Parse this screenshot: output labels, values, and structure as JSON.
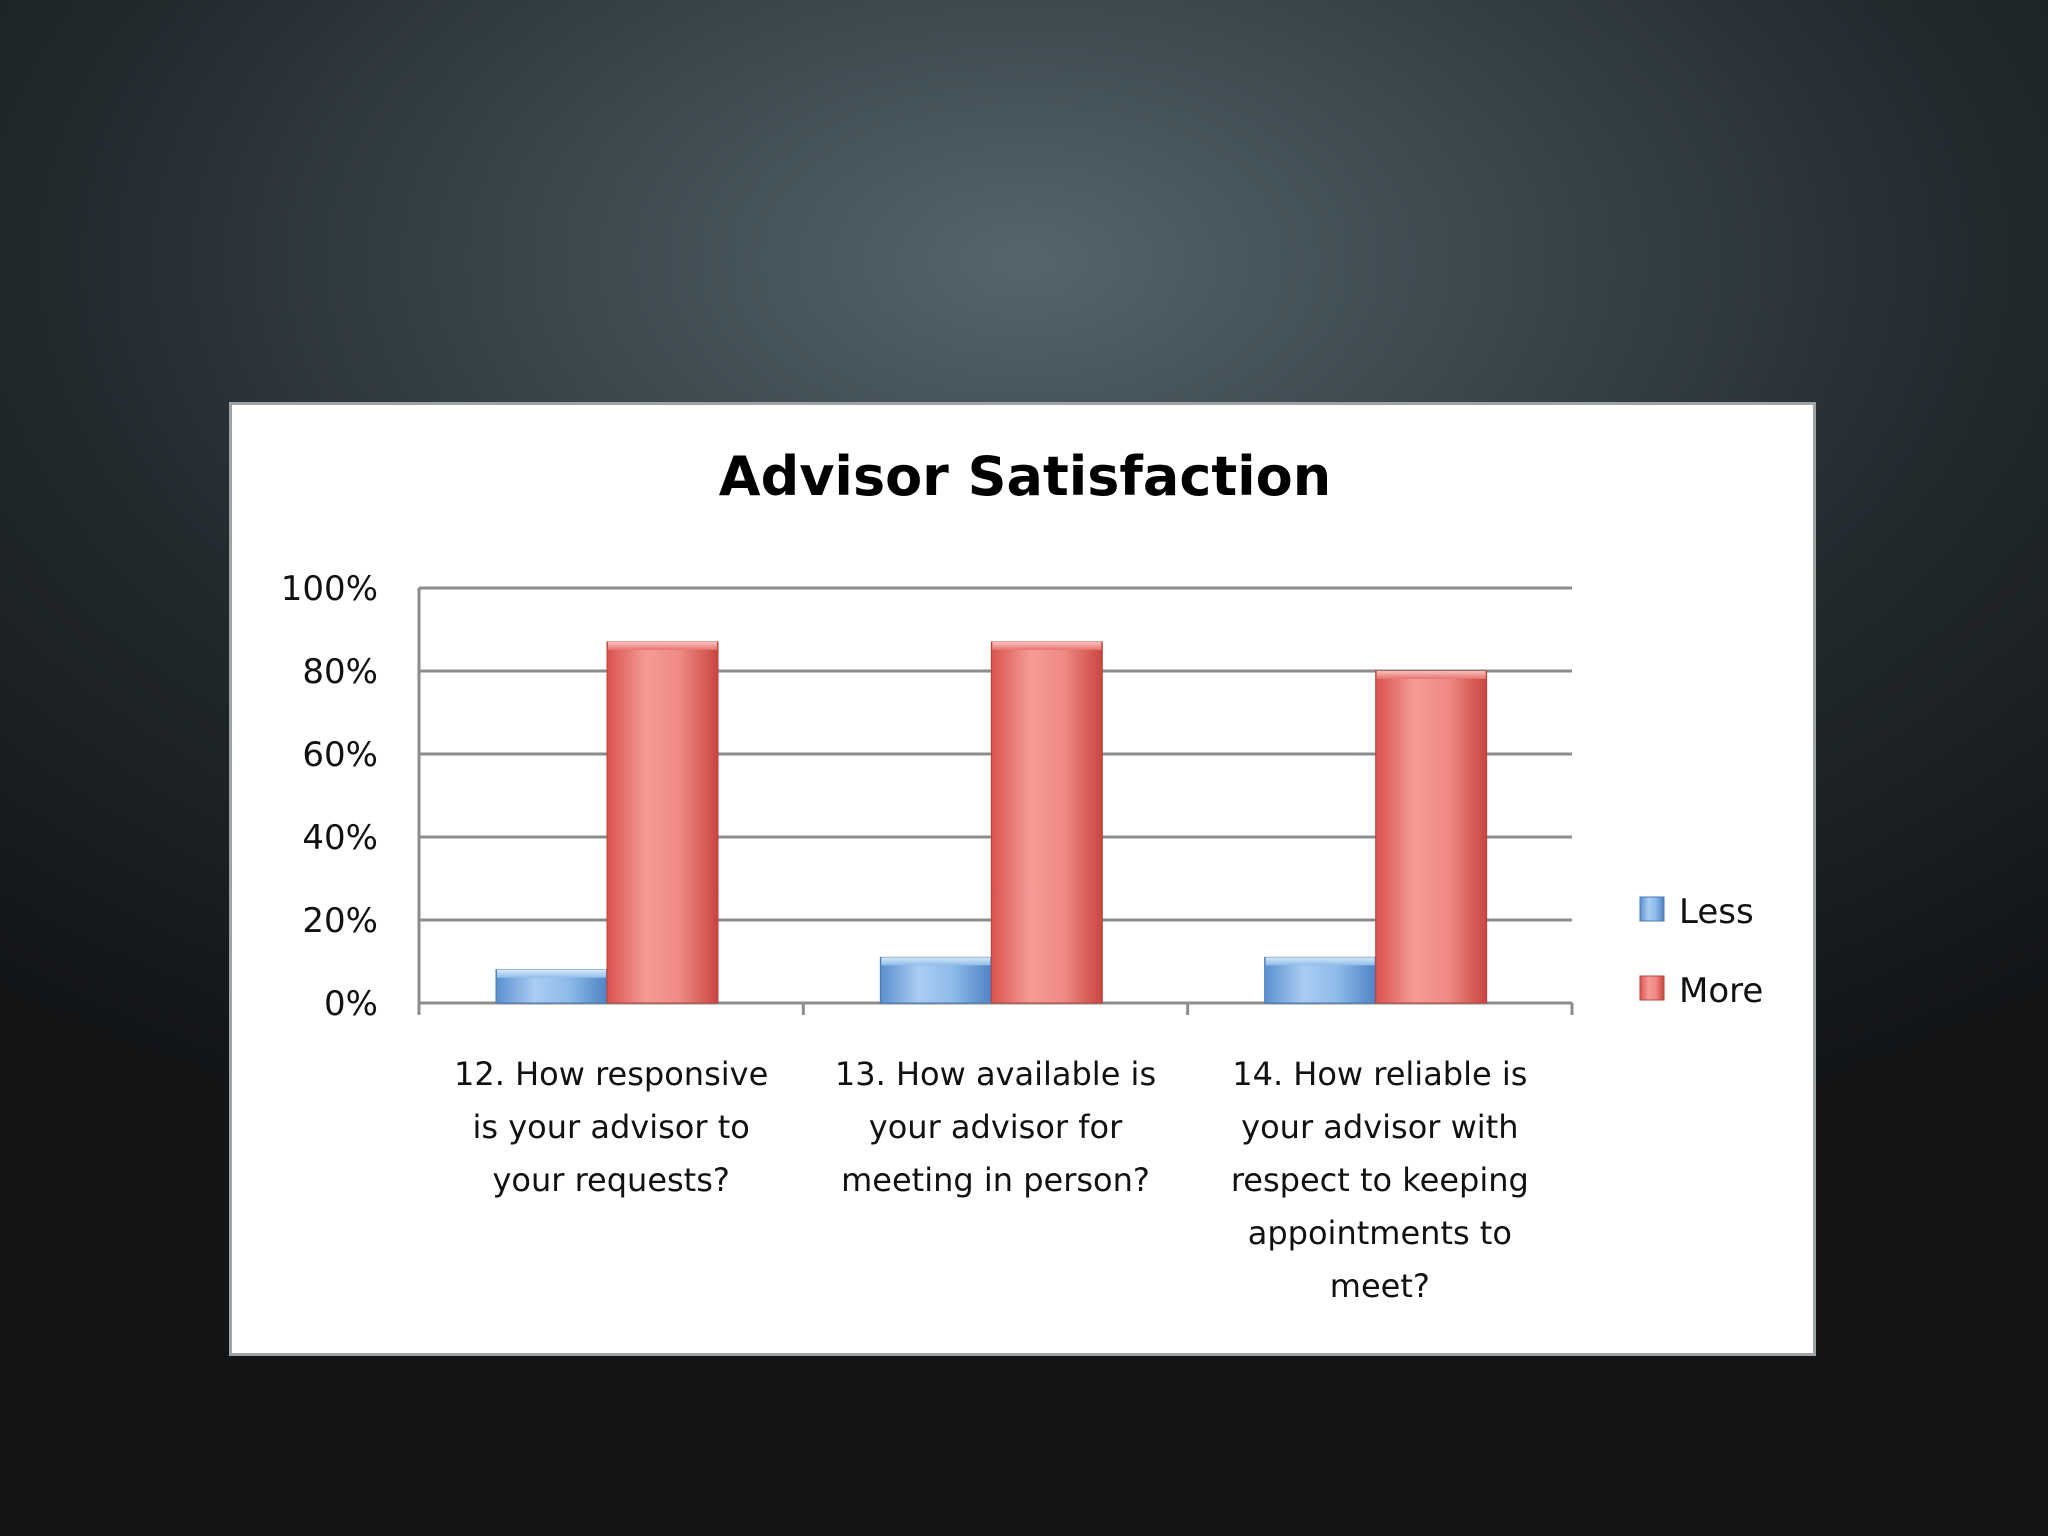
{
  "chart_data": {
    "type": "bar",
    "title": "Advisor Satisfaction",
    "xlabel": "",
    "ylabel": "",
    "ylim": [
      0,
      100
    ],
    "y_ticks": [
      "0%",
      "20%",
      "40%",
      "60%",
      "80%",
      "100%"
    ],
    "grid": true,
    "legend_position": "right",
    "categories": [
      [
        "12. How responsive",
        "is your advisor to",
        "your requests?"
      ],
      [
        "13. How available is",
        "your advisor for",
        "meeting in person?"
      ],
      [
        "14. How reliable is",
        "your advisor with",
        "respect to keeping",
        "appointments to",
        "meet?"
      ]
    ],
    "series": [
      {
        "name": "Less",
        "color": "#6fa3dc",
        "values": [
          8,
          11,
          11
        ]
      },
      {
        "name": "More",
        "color": "#e8605a",
        "values": [
          87,
          87,
          80
        ]
      }
    ]
  }
}
